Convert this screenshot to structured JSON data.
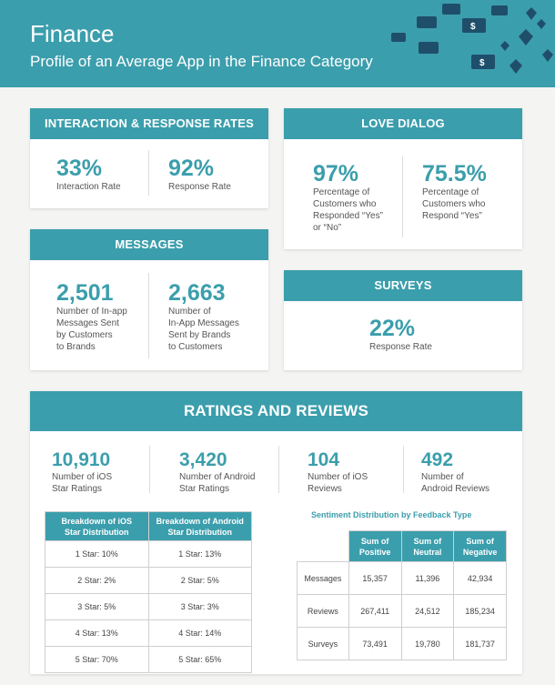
{
  "header": {
    "title": "Finance",
    "subtitle": "Profile of an Average App in the Finance Category"
  },
  "interaction": {
    "heading": "INTERACTION & RESPONSE RATES",
    "stats": [
      {
        "value": "33%",
        "caption": "Interaction  Rate"
      },
      {
        "value": "92%",
        "caption": "Response Rate"
      }
    ]
  },
  "love": {
    "heading": "LOVE DIALOG",
    "stats": [
      {
        "value": "97%",
        "caption": "Percentage of\nCustomers who\nResponded “Yes”\nor “No”"
      },
      {
        "value": "75.5%",
        "caption": "Percentage of\nCustomers who\nRespond “Yes”"
      }
    ]
  },
  "messages": {
    "heading": "MESSAGES",
    "stats": [
      {
        "value": "2,501",
        "caption": "Number of In-app\nMessages Sent\nby Customers\nto Brands"
      },
      {
        "value": "2,663",
        "caption": "Number of\nIn-App Messages\nSent by Brands\nto Customers"
      }
    ]
  },
  "surveys": {
    "heading": "SURVEYS",
    "value": "22%",
    "caption": "Response Rate"
  },
  "ratings": {
    "heading": "RATINGS AND REVIEWS",
    "stats": [
      {
        "value": "10,910",
        "caption": "Number of iOS\nStar Ratings"
      },
      {
        "value": "3,420",
        "caption": "Number of Android\nStar Ratings"
      },
      {
        "value": "104",
        "caption": "Number of iOS\nReviews"
      },
      {
        "value": "492",
        "caption": "Number of\nAndroid Reviews"
      }
    ],
    "star_table": {
      "headers": [
        "Breakdown of iOS\nStar Distribution",
        "Breakdown of Android\nStar Distribution"
      ],
      "rows": [
        [
          "1 Star: 10%",
          "1 Star: 13%"
        ],
        [
          "2 Star: 2%",
          "2 Star: 5%"
        ],
        [
          "3 Star: 5%",
          "3 Star: 3%"
        ],
        [
          "4 Star: 13%",
          "4 Star: 14%"
        ],
        [
          "5 Star: 70%",
          "5 Star: 65%"
        ]
      ]
    },
    "sentiment": {
      "title": "Sentiment Distribution by Feedback Type",
      "columns": [
        "Sum of\nPositive",
        "Sum of\nNeutral",
        "Sum of\nNegative"
      ],
      "rows": [
        {
          "label": "Messages",
          "values": [
            "15,357",
            "11,396",
            "42,934"
          ]
        },
        {
          "label": "Reviews",
          "values": [
            "267,411",
            "24,512",
            "185,234"
          ]
        },
        {
          "label": "Surveys",
          "values": [
            "73,491",
            "19,780",
            "181,737"
          ]
        }
      ]
    }
  },
  "colors": {
    "accent": "#3b9eac",
    "background": "#f4f4f2",
    "decoration": "#1f4e6b"
  }
}
